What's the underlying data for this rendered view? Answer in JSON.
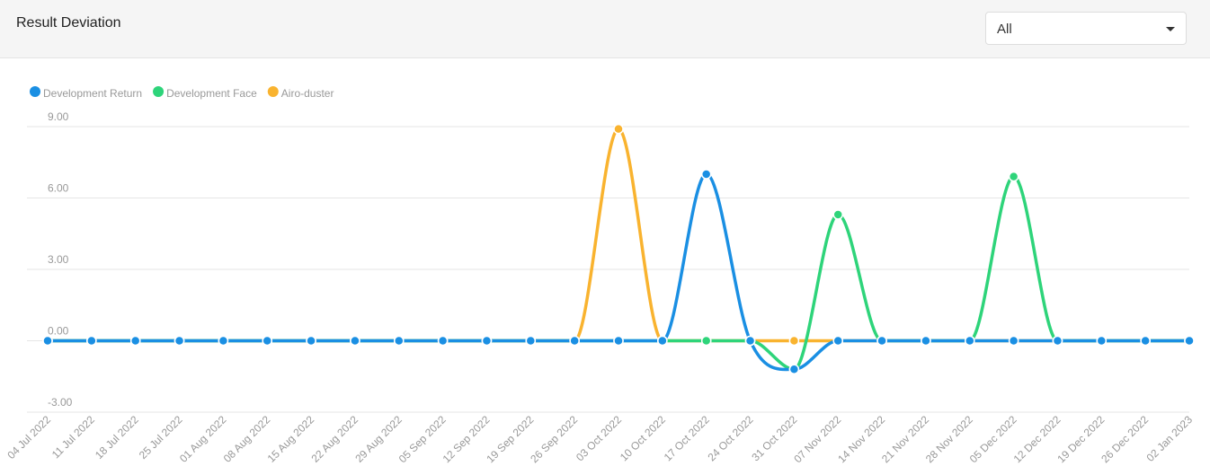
{
  "header": {
    "title": "Result Deviation",
    "filter": "All"
  },
  "chart_data": {
    "type": "line",
    "categories": [
      "04 Jul 2022",
      "11 Jul 2022",
      "18 Jul 2022",
      "25 Jul 2022",
      "01 Aug 2022",
      "08 Aug 2022",
      "15 Aug 2022",
      "22 Aug 2022",
      "29 Aug 2022",
      "05 Sep 2022",
      "12 Sep 2022",
      "19 Sep 2022",
      "26 Sep 2022",
      "03 Oct 2022",
      "10 Oct 2022",
      "17 Oct 2022",
      "24 Oct 2022",
      "31 Oct 2022",
      "07 Nov 2022",
      "14 Nov 2022",
      "21 Nov 2022",
      "28 Nov 2022",
      "05 Dec 2022",
      "12 Dec 2022",
      "19 Dec 2022",
      "26 Dec 2022",
      "02 Jan 2023"
    ],
    "series": [
      {
        "name": "Development Return",
        "color": "#1a8fe3",
        "values": [
          0,
          0,
          0,
          0,
          0,
          0,
          0,
          0,
          0,
          0,
          0,
          0,
          0,
          0,
          0,
          7,
          0,
          -1.2,
          0,
          0,
          0,
          0,
          0,
          0,
          0,
          0,
          0
        ]
      },
      {
        "name": "Development Face",
        "color": "#2ed47a",
        "values": [
          0,
          0,
          0,
          0,
          0,
          0,
          0,
          0,
          0,
          0,
          0,
          0,
          0,
          0,
          0,
          0,
          0,
          -1.2,
          5.3,
          0,
          0,
          0,
          6.9,
          0,
          0,
          0,
          0
        ]
      },
      {
        "name": "Airo-duster",
        "color": "#f9b32f",
        "values": [
          0,
          0,
          0,
          0,
          0,
          0,
          0,
          0,
          0,
          0,
          0,
          0,
          0,
          8.9,
          0,
          0,
          0,
          0,
          0,
          0,
          0,
          0,
          0,
          0,
          0,
          0,
          0
        ]
      }
    ],
    "ylim": [
      -3,
      9
    ],
    "yticks": [
      {
        "value": -3,
        "label": "-3.00"
      },
      {
        "value": 0,
        "label": "0.00"
      },
      {
        "value": 3,
        "label": "3.00"
      },
      {
        "value": 6,
        "label": "6.00"
      },
      {
        "value": 9,
        "label": "9.00"
      }
    ],
    "grid": true
  }
}
